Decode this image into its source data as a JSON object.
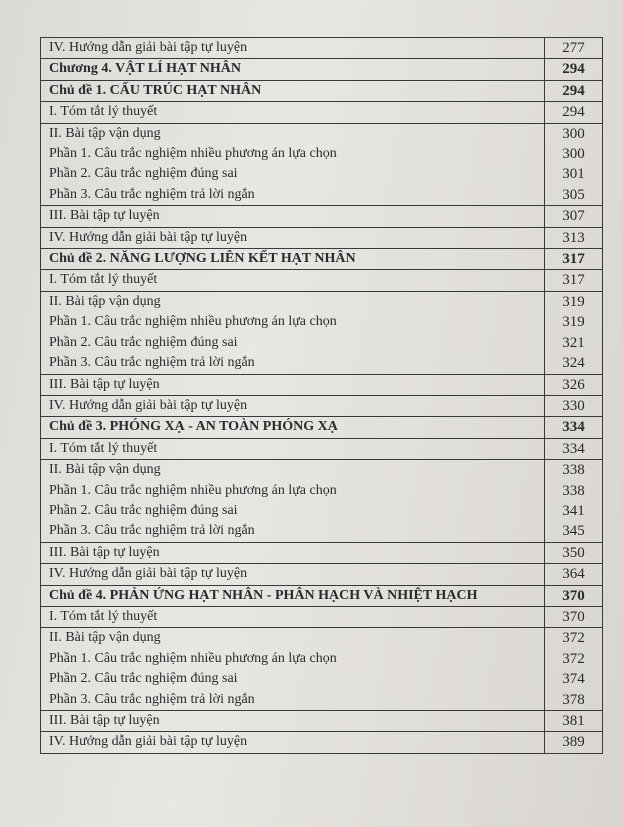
{
  "table": {
    "groups": [
      {
        "style": "normal",
        "entries": [
          {
            "text": "IV. Hướng dẫn giải bài tập tự luyện",
            "page": 277
          }
        ]
      },
      {
        "style": "heading",
        "entries": [
          {
            "text": "Chương 4. VẬT LÍ HẠT NHÂN",
            "page": 294
          }
        ]
      },
      {
        "style": "heading",
        "entries": [
          {
            "text": "Chủ đề 1. CẤU TRÚC HẠT NHÂN",
            "page": 294
          }
        ]
      },
      {
        "style": "normal",
        "entries": [
          {
            "text": "I. Tóm tắt lý thuyết",
            "page": 294
          }
        ]
      },
      {
        "style": "normal",
        "entries": [
          {
            "text": "II. Bài tập vận dụng",
            "page": 300
          },
          {
            "text": "Phần 1. Câu trắc nghiệm nhiều phương án lựa chọn",
            "page": 300
          },
          {
            "text": "Phần 2. Câu trắc nghiệm đúng sai",
            "page": 301
          },
          {
            "text": "Phần 3. Câu trắc nghiệm trả lời ngắn",
            "page": 305
          }
        ]
      },
      {
        "style": "normal",
        "entries": [
          {
            "text": "III. Bài tập tự luyện",
            "page": 307
          }
        ]
      },
      {
        "style": "normal",
        "entries": [
          {
            "text": "IV. Hướng dẫn giải bài tập tự luyện",
            "page": 313
          }
        ]
      },
      {
        "style": "heading",
        "entries": [
          {
            "text": "Chủ đề 2. NĂNG LƯỢNG LIÊN KẾT HẠT NHÂN",
            "page": 317
          }
        ]
      },
      {
        "style": "normal",
        "entries": [
          {
            "text": "I. Tóm tắt lý thuyết",
            "page": 317
          }
        ]
      },
      {
        "style": "normal",
        "entries": [
          {
            "text": "II. Bài tập vận dụng",
            "page": 319
          },
          {
            "text": "Phần 1. Câu trắc nghiệm nhiều phương án lựa chọn",
            "page": 319
          },
          {
            "text": "Phần 2. Câu trắc nghiệm đúng sai",
            "page": 321
          },
          {
            "text": "Phần 3. Câu trắc nghiệm trả lời ngắn",
            "page": 324
          }
        ]
      },
      {
        "style": "normal",
        "entries": [
          {
            "text": "III. Bài tập tự luyện",
            "page": 326
          }
        ]
      },
      {
        "style": "normal",
        "entries": [
          {
            "text": "IV. Hướng dẫn giải bài tập tự luyện",
            "page": 330
          }
        ]
      },
      {
        "style": "heading",
        "entries": [
          {
            "text": "Chủ đề 3. PHÓNG XẠ - AN TOÀN PHÓNG XẠ",
            "page": 334
          }
        ]
      },
      {
        "style": "normal",
        "entries": [
          {
            "text": "I. Tóm tắt lý thuyết",
            "page": 334
          }
        ]
      },
      {
        "style": "normal",
        "entries": [
          {
            "text": "II. Bài tập vận dụng",
            "page": 338
          },
          {
            "text": "Phần 1. Câu trắc nghiệm nhiều phương án lựa chọn",
            "page": 338
          },
          {
            "text": "Phần 2. Câu trắc nghiệm đúng sai",
            "page": 341
          },
          {
            "text": "Phần 3. Câu trắc nghiệm trả lời ngắn",
            "page": 345
          }
        ]
      },
      {
        "style": "normal",
        "entries": [
          {
            "text": "III. Bài tập tự luyện",
            "page": 350
          }
        ]
      },
      {
        "style": "normal",
        "entries": [
          {
            "text": "IV. Hướng dẫn giải bài tập tự luyện",
            "page": 364
          }
        ]
      },
      {
        "style": "heading",
        "entries": [
          {
            "text": "Chủ đề 4. PHẢN ỨNG HẠT NHÂN - PHÂN HẠCH VÀ NHIỆT HẠCH",
            "page": 370
          }
        ]
      },
      {
        "style": "normal",
        "entries": [
          {
            "text": "I. Tóm tắt lý thuyết",
            "page": 370
          }
        ]
      },
      {
        "style": "normal",
        "entries": [
          {
            "text": "II. Bài tập vận dụng",
            "page": 372
          },
          {
            "text": "Phần 1. Câu trắc nghiệm nhiều phương án lựa chọn",
            "page": 372
          },
          {
            "text": "Phần 2. Câu trắc nghiệm đúng sai",
            "page": 374
          },
          {
            "text": "Phần 3. Câu trắc nghiệm trả lời ngắn",
            "page": 378
          }
        ]
      },
      {
        "style": "normal",
        "entries": [
          {
            "text": "III. Bài tập tự luyện",
            "page": 381
          }
        ]
      },
      {
        "style": "normal",
        "entries": [
          {
            "text": "IV. Hướng dẫn giải bài tập tự luyện",
            "page": 389
          }
        ]
      }
    ]
  }
}
